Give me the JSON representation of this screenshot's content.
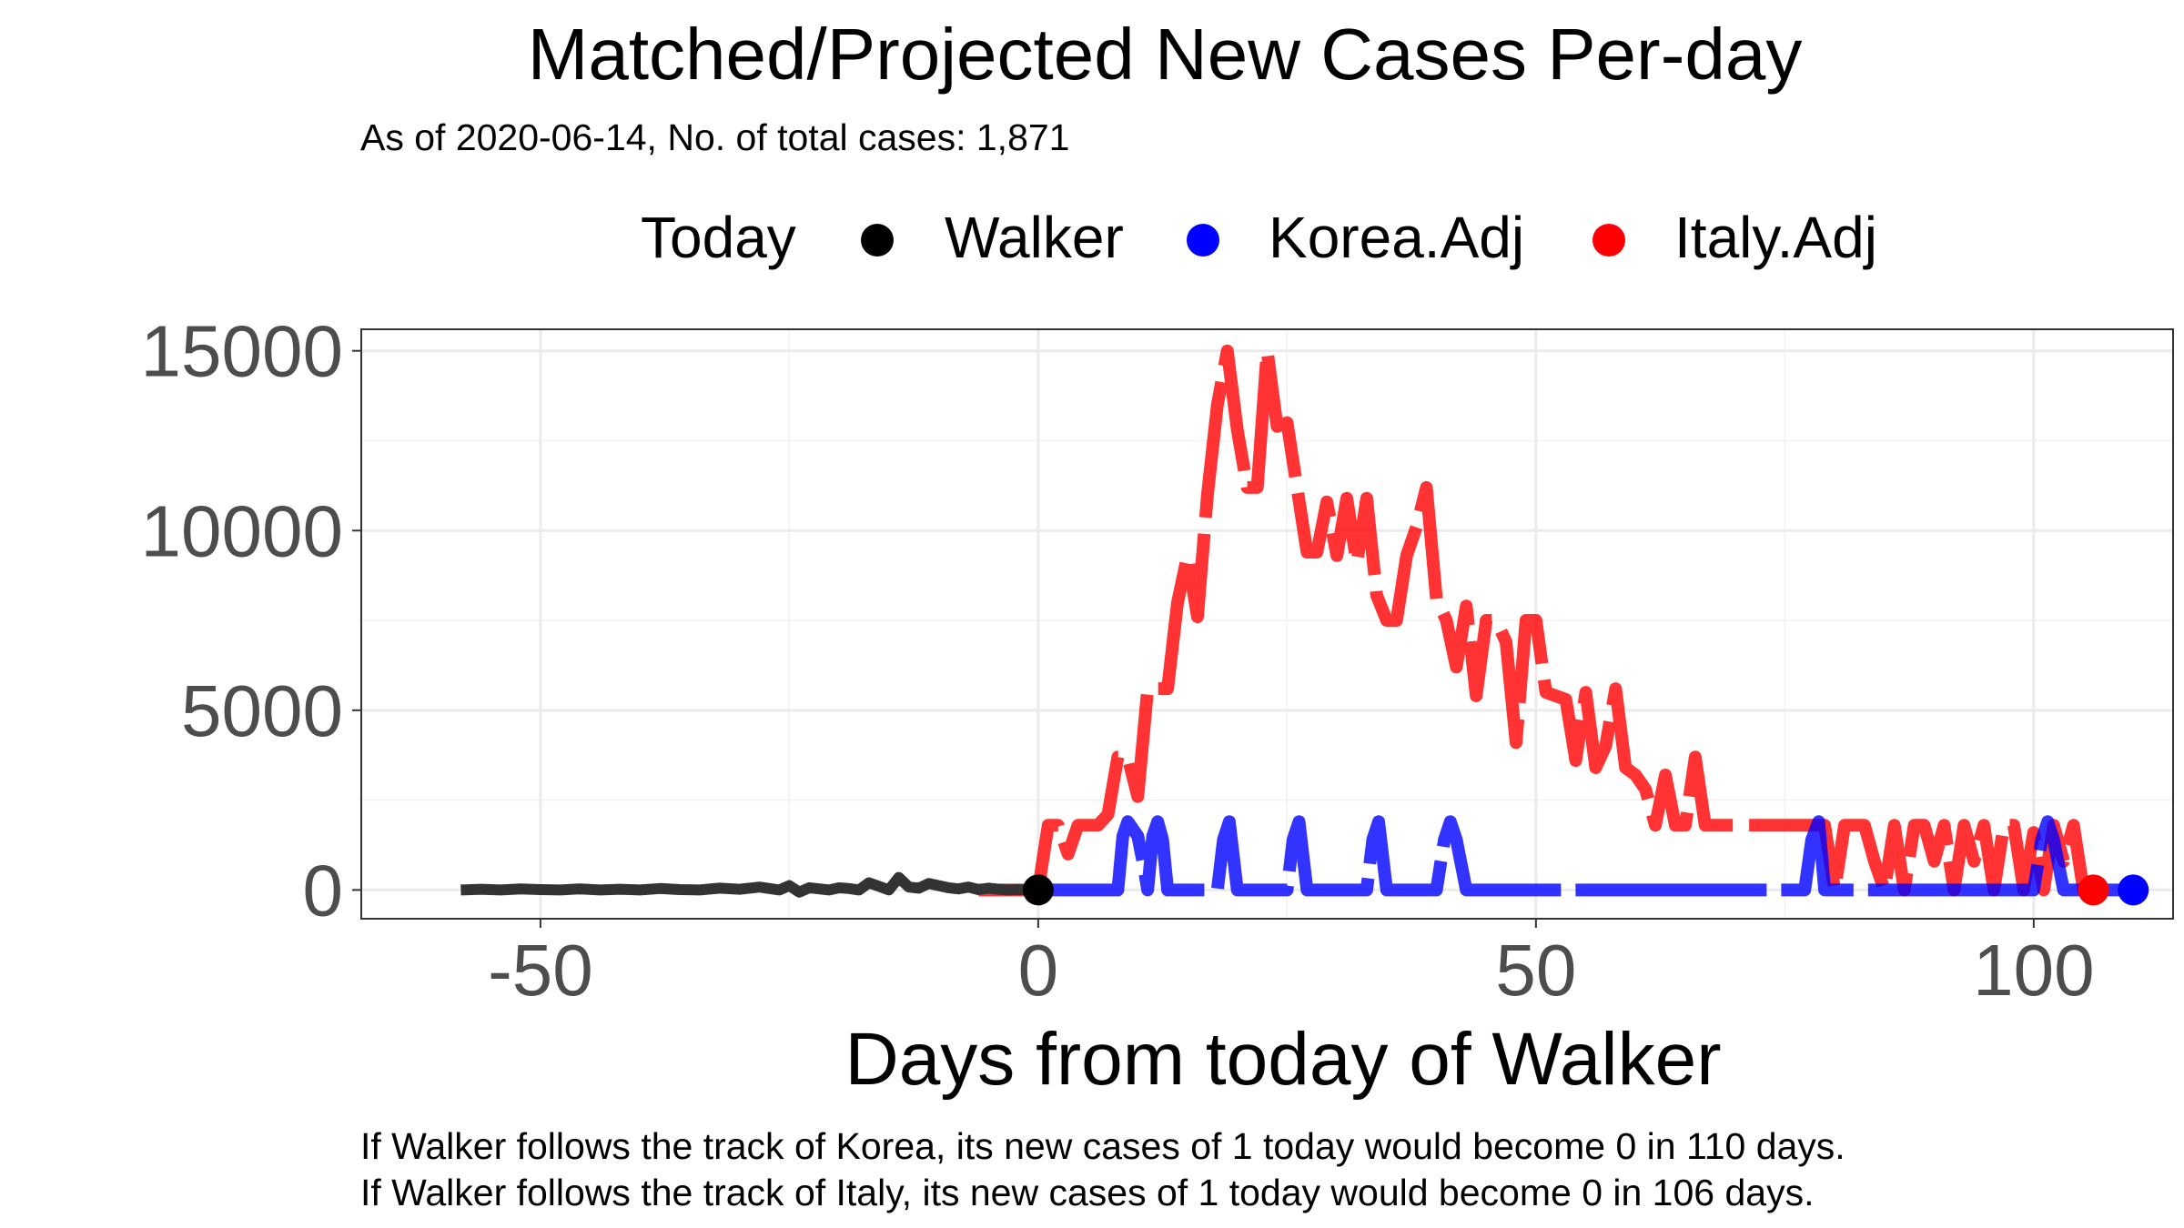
{
  "title": "Matched/Projected New Cases Per-day",
  "subtitle": "As of 2020-06-14, No. of total cases: 1,871",
  "legend": {
    "title": "Today",
    "items": [
      {
        "label": "Walker",
        "color": "#000000"
      },
      {
        "label": "Korea.Adj",
        "color": "#0000ff"
      },
      {
        "label": "Italy.Adj",
        "color": "#ff0000"
      }
    ]
  },
  "captions": [
    "If Walker follows the track of Korea, its new cases of 1 today would become 0 in 110 days.",
    "If Walker follows the track of Italy, its new cases of 1 today would become 0 in 106 days."
  ],
  "chart_data": {
    "type": "line",
    "title": "Matched/Projected New Cases Per-day",
    "xlabel": "Days from today of Walker",
    "ylabel": "",
    "xlim": [
      -68,
      114
    ],
    "ylim": [
      -800,
      15600
    ],
    "xticks": [
      -50,
      0,
      50,
      100
    ],
    "yticks": [
      0,
      5000,
      10000,
      15000
    ],
    "grid": true,
    "legend_position": "top",
    "series": [
      {
        "name": "Walker",
        "color": "#333333",
        "x": [
          -58,
          -56,
          -54,
          -52,
          -50,
          -48,
          -46,
          -44,
          -42,
          -40,
          -38,
          -36,
          -34,
          -32,
          -30,
          -28,
          -26,
          -25,
          -24,
          -23,
          -22,
          -21,
          -20,
          -19,
          -18,
          -17,
          -16,
          -15,
          -14,
          -13,
          -12,
          -11,
          -10,
          -9,
          -8,
          -7,
          -6,
          -5,
          -4,
          -3,
          -2,
          -1,
          0
        ],
        "y": [
          0,
          20,
          0,
          30,
          10,
          0,
          30,
          0,
          20,
          0,
          40,
          10,
          0,
          50,
          20,
          80,
          0,
          120,
          -60,
          60,
          30,
          0,
          60,
          40,
          0,
          200,
          100,
          0,
          350,
          80,
          50,
          180,
          120,
          60,
          30,
          80,
          10,
          50,
          20,
          0,
          10,
          0,
          1
        ]
      },
      {
        "name": "Korea.Adj",
        "color": "#0000ff",
        "x": [
          0,
          2,
          4,
          6,
          7,
          8,
          8.5,
          9,
          10,
          10.5,
          11,
          11.5,
          12,
          12.5,
          13,
          14,
          15,
          16,
          17,
          18,
          18.6,
          19.2,
          20,
          24,
          25,
          25.6,
          26.2,
          27,
          32,
          33,
          33.6,
          34.2,
          35,
          40,
          40.8,
          41.4,
          42,
          43,
          76,
          77,
          77.7,
          78.4,
          79,
          100,
          100.8,
          101.4,
          102,
          103,
          110
        ],
        "y": [
          0,
          0,
          0,
          0,
          0,
          0,
          1500,
          1900,
          1500,
          800,
          0,
          1500,
          1900,
          1400,
          0,
          0,
          0,
          0,
          0,
          0,
          1400,
          1900,
          0,
          0,
          0,
          1400,
          1900,
          0,
          0,
          0,
          1400,
          1900,
          0,
          0,
          1400,
          1900,
          1400,
          0,
          0,
          0,
          1400,
          1900,
          0,
          0,
          1400,
          1900,
          1400,
          0,
          0
        ]
      },
      {
        "name": "Italy.Adj",
        "color": "#ff0000",
        "x": [
          -6,
          -4,
          -2,
          0,
          1,
          2,
          3,
          4,
          5,
          6,
          7,
          8,
          9,
          10,
          11,
          12,
          13,
          14,
          15,
          16,
          17,
          18,
          19,
          20,
          21,
          22,
          23,
          24,
          25,
          26,
          27,
          28,
          29,
          30,
          31,
          32,
          33,
          34,
          35,
          36,
          37,
          38,
          39,
          40,
          41,
          42,
          43,
          44,
          45,
          46,
          47,
          48,
          49,
          50,
          51,
          52,
          53,
          54,
          55,
          56,
          57,
          58,
          59,
          60,
          61,
          62,
          63,
          64,
          65,
          66,
          67,
          68,
          69,
          70,
          71,
          72,
          73,
          74,
          75,
          76,
          77,
          78,
          79,
          80,
          81,
          82,
          83,
          84,
          85,
          86,
          87,
          88,
          89,
          90,
          91,
          92,
          93,
          94,
          95,
          96,
          97,
          98,
          99,
          100,
          101,
          102,
          103,
          104,
          105,
          106
        ],
        "y": [
          0,
          0,
          0,
          0,
          1800,
          1800,
          1000,
          1800,
          1800,
          1800,
          2100,
          3700,
          3700,
          2600,
          5600,
          5600,
          5600,
          8000,
          9300,
          7600,
          11000,
          13500,
          15000,
          12800,
          11200,
          11200,
          15000,
          12900,
          13000,
          11200,
          9400,
          9400,
          10800,
          9300,
          10900,
          9100,
          10900,
          8200,
          7500,
          7500,
          9300,
          10100,
          11200,
          8100,
          7500,
          6200,
          7900,
          5400,
          7500,
          7500,
          6900,
          4100,
          7500,
          7500,
          5500,
          5400,
          5300,
          3600,
          5500,
          3400,
          4000,
          5600,
          3400,
          3200,
          2800,
          1800,
          3200,
          1800,
          1800,
          3700,
          1800,
          1800,
          1800,
          1800,
          1800,
          1800,
          1800,
          1800,
          1800,
          1800,
          1800,
          1800,
          1800,
          0,
          1800,
          1800,
          1800,
          800,
          0,
          1800,
          0,
          1800,
          1800,
          800,
          1800,
          0,
          1800,
          800,
          1800,
          0,
          1800,
          1800,
          0,
          1600,
          0,
          1800,
          800,
          1800,
          0,
          0
        ]
      }
    ],
    "points": [
      {
        "name": "Walker",
        "x": 0,
        "y": 1,
        "color": "#000000"
      },
      {
        "name": "Korea.Adj",
        "x": 110,
        "y": 0,
        "color": "#0000ff"
      },
      {
        "name": "Italy.Adj",
        "x": 106,
        "y": 0,
        "color": "#ff0000"
      }
    ]
  }
}
